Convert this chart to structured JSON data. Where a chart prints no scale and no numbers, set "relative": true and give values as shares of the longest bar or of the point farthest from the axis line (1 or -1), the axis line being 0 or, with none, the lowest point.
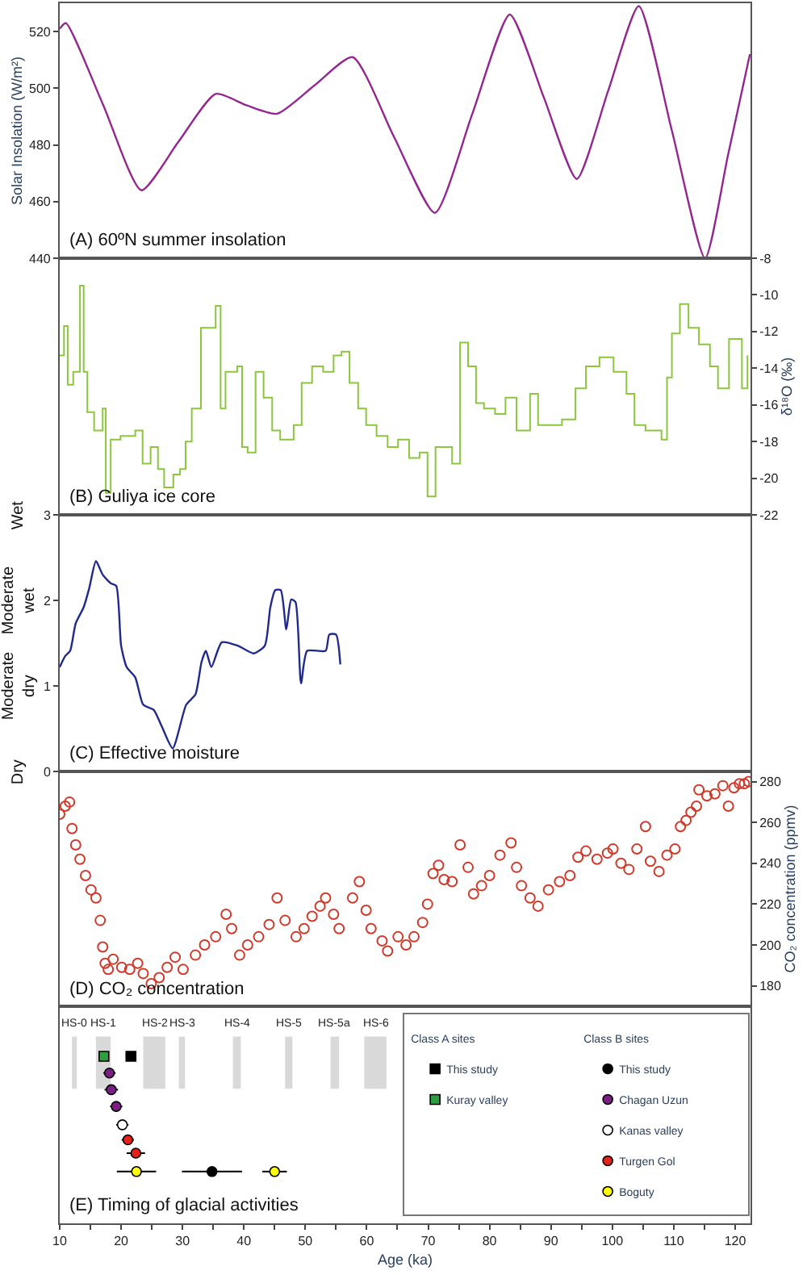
{
  "chart_data": [
    {
      "type": "line",
      "title": "(A) 60ºN summer insolation",
      "ylabel": "Solar Insolation (W/m²)",
      "tick_labels": "y",
      "xlim": [
        10,
        122.5
      ],
      "ylim": [
        440,
        530
      ],
      "yticks": [
        440,
        460,
        480,
        500,
        520
      ],
      "color": "#93278f",
      "x": [
        10.0,
        11.0,
        17.1,
        23.3,
        29.3,
        35.4,
        40.4,
        45.4,
        51.5,
        57.7,
        64.4,
        71.1,
        77.2,
        83.3,
        88.8,
        94.2,
        99.3,
        104.3,
        109.7,
        115.1,
        118.8,
        122.4
      ],
      "values": [
        521,
        523,
        494,
        464,
        481,
        498,
        494,
        491,
        501,
        511,
        483,
        456,
        491,
        526,
        497,
        468,
        499,
        529,
        485,
        440,
        476,
        512
      ]
    },
    {
      "type": "step",
      "title": "(B) Guliya ice core",
      "y2label": "δ¹⁸O (‰)",
      "tick_labels": "y",
      "xlim": [
        10,
        122.5
      ],
      "y2lim": [
        -22,
        -8
      ],
      "y2ticks": [
        -8,
        -10,
        -12,
        -14,
        -16,
        -18,
        -20,
        -22
      ],
      "series": [
        {
          "color": "#8cc63f",
          "axis": "y2",
          "x": [
            10.0,
            10.7,
            11.3,
            12.2,
            13.3,
            13.9,
            14.5,
            15.6,
            17.0,
            17.5,
            18.3,
            19.9,
            22.3,
            23.5,
            24.8,
            26.0,
            27.0,
            28.5,
            29.6,
            30.5,
            31.5,
            33.0,
            35.4,
            36.2,
            37.0,
            38.9,
            39.7,
            40.6,
            41.9,
            43.2,
            44.6,
            45.9,
            48.1,
            49.4,
            51.1,
            52.9,
            54.6,
            55.9,
            57.2,
            58.6,
            59.9,
            61.6,
            63.4,
            65.1,
            66.9,
            68.6,
            69.9,
            71.2,
            73.9,
            75.2,
            76.5,
            77.8,
            79.1,
            80.9,
            82.6,
            84.4,
            86.6,
            87.9,
            89.6,
            91.8,
            94.0,
            95.7,
            97.9,
            100.2,
            102.3,
            103.6,
            105.4,
            108.0,
            108.9,
            109.7,
            111.0,
            112.4,
            114.1,
            115.9,
            117.2,
            119.0,
            121.1,
            122.0
          ],
          "values": [
            -13.3,
            -11.7,
            -14.9,
            -14.2,
            -9.5,
            -14.2,
            -16.4,
            -17.4,
            -16.2,
            -20.8,
            -17.9,
            -17.7,
            -17.4,
            -19.2,
            -18.3,
            -19.5,
            -20.5,
            -19.8,
            -19.5,
            -18.0,
            -16.2,
            -11.8,
            -10.6,
            -16.2,
            -14.2,
            -13.9,
            -18.3,
            -18.6,
            -14.2,
            -15.6,
            -17.4,
            -17.9,
            -17.1,
            -14.8,
            -13.9,
            -14.2,
            -13.3,
            -13.1,
            -14.8,
            -16.2,
            -17.1,
            -17.7,
            -18.3,
            -17.9,
            -18.9,
            -18.6,
            -21.0,
            -18.3,
            -19.2,
            -12.6,
            -13.9,
            -15.9,
            -16.2,
            -16.5,
            -15.6,
            -17.4,
            -15.4,
            -17.1,
            -17.1,
            -16.8,
            -15.1,
            -13.9,
            -13.4,
            -14.2,
            -15.4,
            -17.1,
            -17.4,
            -17.9,
            -14.5,
            -12.1,
            -10.5,
            -11.8,
            -12.7,
            -13.9,
            -15.1,
            -12.4,
            -15.1,
            -13.3
          ]
        }
      ]
    },
    {
      "type": "line",
      "title": "(C) Effective moisture",
      "tick_labels": "y",
      "xlim": [
        10,
        122.5
      ],
      "ylim": [
        0,
        3
      ],
      "yticks": [
        0,
        1,
        2,
        3
      ],
      "color": "#1f2a8c",
      "annotations": [
        "Wet",
        "Moderate\nwet",
        "Moderate\ndry",
        "Dry"
      ],
      "x": [
        10.0,
        10.9,
        11.7,
        12.6,
        13.9,
        14.8,
        15.9,
        17.0,
        18.3,
        19.2,
        20.0,
        20.9,
        22.3,
        23.6,
        25.3,
        26.6,
        28.4,
        30.6,
        32.1,
        33.1,
        33.8,
        34.7,
        36.4,
        39.0,
        41.6,
        43.4,
        44.3,
        45.1,
        46.0,
        46.9,
        47.7,
        48.4,
        49.3,
        50.3,
        53.3,
        53.9,
        55.0,
        55.7
      ],
      "values": [
        1.22,
        1.35,
        1.41,
        1.73,
        1.92,
        2.14,
        2.46,
        2.3,
        2.2,
        2.17,
        1.47,
        1.22,
        1.1,
        0.78,
        0.72,
        0.53,
        0.27,
        0.78,
        0.9,
        1.28,
        1.41,
        1.22,
        1.51,
        1.47,
        1.38,
        1.47,
        1.92,
        2.12,
        2.12,
        1.66,
        2.01,
        1.98,
        1.03,
        1.41,
        1.41,
        1.6,
        1.6,
        1.25
      ]
    },
    {
      "type": "scatter",
      "title": "(D) CO₂ concentration",
      "y2label": "CO₂ concentration (ppmv)",
      "tick_labels": "y",
      "marker": "circle",
      "xlim": [
        10,
        122.5
      ],
      "y2lim": [
        170,
        285
      ],
      "y2ticks": [
        180,
        200,
        220,
        240,
        260,
        280
      ],
      "series": [
        {
          "color": "#d03a2a",
          "axis": "y2",
          "x": [
            10.0,
            10.9,
            11.6,
            12.0,
            12.6,
            13.3,
            14.2,
            15.1,
            15.9,
            16.6,
            17.0,
            17.4,
            17.9,
            18.7,
            20.1,
            21.4,
            22.7,
            23.6,
            24.9,
            26.2,
            27.5,
            28.8,
            30.1,
            32.1,
            33.6,
            35.4,
            37.1,
            38.0,
            39.3,
            40.6,
            42.4,
            44.1,
            45.4,
            46.7,
            48.5,
            49.8,
            51.1,
            52.4,
            53.3,
            54.6,
            55.5,
            57.7,
            58.8,
            59.9,
            60.7,
            62.5,
            63.4,
            65.1,
            66.4,
            67.7,
            69.1,
            69.9,
            70.8,
            71.7,
            72.6,
            73.9,
            75.2,
            76.5,
            77.4,
            78.7,
            80.0,
            81.7,
            83.5,
            84.4,
            85.2,
            86.6,
            87.9,
            89.6,
            91.4,
            93.1,
            94.4,
            95.7,
            97.5,
            99.2,
            100.1,
            101.4,
            102.7,
            104.0,
            105.4,
            106.2,
            107.6,
            108.9,
            110.2,
            111.1,
            112.0,
            112.8,
            113.7,
            114.1,
            115.4,
            116.7,
            118.0,
            118.9,
            119.8,
            120.7,
            121.5,
            122.2
          ],
          "values": [
            264,
            268,
            270,
            257,
            249,
            242,
            234,
            227,
            223,
            212,
            199,
            191,
            188,
            193,
            189,
            188,
            191,
            186,
            181,
            184,
            189,
            194,
            188,
            195,
            200,
            204,
            215,
            208,
            195,
            200,
            204,
            210,
            223,
            212,
            204,
            208,
            214,
            219,
            223,
            215,
            208,
            223,
            231,
            217,
            208,
            202,
            197,
            204,
            200,
            204,
            211,
            220,
            235,
            239,
            232,
            231,
            249,
            238,
            225,
            229,
            234,
            244,
            250,
            238,
            229,
            223,
            219,
            227,
            231,
            234,
            243,
            246,
            242,
            245,
            247,
            240,
            237,
            247,
            258,
            241,
            236,
            244,
            247,
            258,
            261,
            265,
            268,
            276,
            273,
            274,
            278,
            268,
            277,
            279,
            279,
            280
          ]
        }
      ]
    },
    {
      "type": "scatter",
      "title": "(E) Timing of glacial activities",
      "xlabel": "Age (ka)",
      "tick_labels": "x",
      "relative": true,
      "legend": "right",
      "legend_title": [
        "Class A sites",
        "Class B sites"
      ],
      "xlim": [
        10,
        122.5
      ],
      "xticks": [
        10,
        {
          "value": 15,
          "label": null
        },
        20,
        {
          "value": 25,
          "label": null
        },
        30,
        {
          "value": 35,
          "label": null
        },
        40,
        {
          "value": 45,
          "label": null
        },
        50,
        {
          "value": 55,
          "label": null
        },
        60,
        {
          "value": 65,
          "label": null
        },
        70,
        {
          "value": 75,
          "label": null
        },
        80,
        {
          "value": 85,
          "label": null
        },
        90,
        {
          "value": 95,
          "label": null
        },
        100,
        {
          "value": 105,
          "label": null
        },
        110,
        {
          "value": 115,
          "label": null
        },
        120
      ],
      "bands": [
        {
          "axis": "x",
          "from": 12.0,
          "to": 12.8,
          "label": "HS-0",
          "color": "#d9d9d9"
        },
        {
          "axis": "x",
          "from": 15.9,
          "to": 18.3,
          "label": "HS-1",
          "color": "#d9d9d9"
        },
        {
          "axis": "x",
          "from": 23.6,
          "to": 27.2,
          "label": "HS-2",
          "color": "#d9d9d9"
        },
        {
          "axis": "x",
          "from": 29.4,
          "to": 30.4,
          "label": "HS-3",
          "color": "#d9d9d9"
        },
        {
          "axis": "x",
          "from": 38.2,
          "to": 39.5,
          "label": "HS-4",
          "color": "#d9d9d9"
        },
        {
          "axis": "x",
          "from": 46.7,
          "to": 47.9,
          "label": "HS-5",
          "color": "#d9d9d9"
        },
        {
          "axis": "x",
          "from": 54.1,
          "to": 55.5,
          "label": "HS-5a",
          "color": "#d9d9d9"
        },
        {
          "axis": "x",
          "from": 59.6,
          "to": 63.2,
          "label": "HS-6",
          "color": "#d9d9d9"
        }
      ],
      "series": [
        {
          "name": "This study",
          "color": "#000000",
          "marker": "square",
          "x": [
            21.6
          ],
          "values": [
            1.0
          ]
        },
        {
          "name": "Kuray valley",
          "color": "#2e9e3e",
          "marker": "square",
          "x": [
            17.2
          ],
          "values": [
            1.0
          ]
        },
        {
          "name": "This study",
          "color": "#000000",
          "marker": "circle",
          "x": [
            34.8
          ],
          "values": [
            0.31
          ],
          "xerrors": [
            4.9
          ]
        },
        {
          "name": "Chagan Uzun",
          "color": "#7b1f86",
          "marker": "circle",
          "x": [
            18.1,
            18.4,
            19.2
          ],
          "values": [
            0.9,
            0.8,
            0.7
          ],
          "xerrors": [
            1.0,
            1.1,
            1.0
          ]
        },
        {
          "name": "Kanas valley",
          "color": "#ffffff",
          "marker": "circle",
          "x": [
            20.2
          ],
          "values": [
            0.59
          ],
          "xerrors": [
            1.0
          ]
        },
        {
          "name": "Turgen Gol",
          "color": "#e3221c",
          "marker": "circle",
          "x": [
            21.1,
            22.4
          ],
          "values": [
            0.5,
            0.42
          ],
          "xerrors": [
            1.0,
            1.5
          ]
        },
        {
          "name": "Boguty",
          "color": "#ffff00",
          "marker": "circle",
          "x": [
            22.5,
            45.0
          ],
          "values": [
            0.31,
            0.31
          ],
          "xerrors": [
            3.2,
            2.0
          ]
        }
      ]
    }
  ]
}
